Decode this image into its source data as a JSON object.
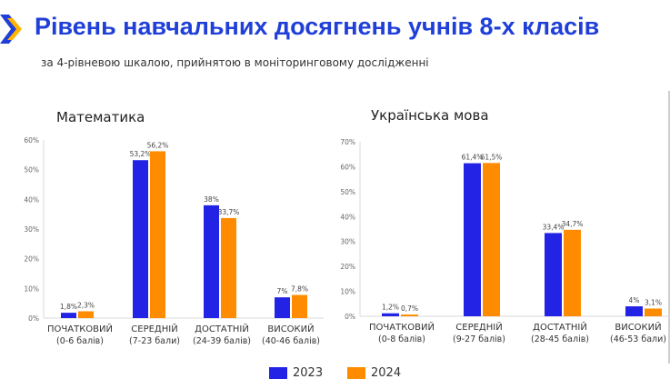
{
  "header": {
    "title": "Рівень навчальних досягнень учнів 8-х класів",
    "subtitle": "за 4-рівневою шкалою, прийнятою в моніторинговому дослідженні"
  },
  "legend": [
    {
      "name": "2023",
      "color": "#2323e6"
    },
    {
      "name": "2024",
      "color": "#ff8c00"
    }
  ],
  "chart_data": [
    {
      "type": "bar",
      "title": "Математика",
      "categories": [
        "ПОЧАТКОВИЙ",
        "СЕРЕДНІЙ",
        "ДОСТАТНІЙ",
        "ВИСОКИЙ"
      ],
      "category_sublabels": [
        "(0-6 балів)",
        "(7-23 бали)",
        "(24-39 балів)",
        "(40-46 балів)"
      ],
      "series": [
        {
          "name": "2023",
          "values": [
            1.8,
            53.2,
            38,
            7
          ],
          "labels": [
            "1,8%",
            "53,2%",
            "38%",
            "7%"
          ],
          "color": "#2323e6"
        },
        {
          "name": "2024",
          "values": [
            2.3,
            56.2,
            33.7,
            7.8
          ],
          "labels": [
            "2,3%",
            "56,2%",
            "33,7%",
            "7,8%"
          ],
          "color": "#ff8c00"
        }
      ],
      "y_ticks": [
        "0%",
        "10%",
        "20%",
        "30%",
        "40%",
        "50%",
        "60%"
      ],
      "ylim": [
        0,
        60
      ],
      "legend": "bottom",
      "grid": false
    },
    {
      "type": "bar",
      "title": "Українська мова",
      "categories": [
        "ПОЧАТКОВИЙ",
        "СЕРЕДНІЙ",
        "ДОСТАТНІЙ",
        "ВИСОКИЙ"
      ],
      "category_sublabels": [
        "(0-8 балів)",
        "(9-27 балів)",
        "(28-45 балів)",
        "(46-53 бали)"
      ],
      "series": [
        {
          "name": "2023",
          "values": [
            1.2,
            61.4,
            33.4,
            4
          ],
          "labels": [
            "1,2%",
            "61,4%",
            "33,4%",
            "4%"
          ],
          "color": "#2323e6"
        },
        {
          "name": "2024",
          "values": [
            0.7,
            61.5,
            34.7,
            3.1
          ],
          "labels": [
            "0,7%",
            "61,5%",
            "34,7%",
            "3,1%"
          ],
          "color": "#ff8c00"
        }
      ],
      "y_ticks": [
        "0%",
        "10%",
        "20%",
        "30%",
        "40%",
        "50%",
        "60%",
        "70%"
      ],
      "ylim": [
        0,
        70
      ],
      "legend": "bottom",
      "grid": false
    }
  ]
}
